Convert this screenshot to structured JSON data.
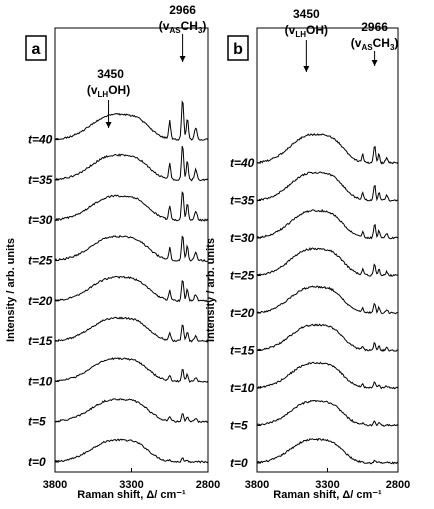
{
  "chart_data": [
    {
      "type": "line",
      "panel_label": "a",
      "xlabel": "Raman shift, Δ/ cm⁻¹",
      "ylabel": "Intensity / arb. units",
      "xlim": [
        3800,
        2800
      ],
      "x_ticks": [
        "3800",
        "3300",
        "2800"
      ],
      "series": [
        {
          "label": "t=0"
        },
        {
          "label": "t=5"
        },
        {
          "label": "t=10"
        },
        {
          "label": "t=15"
        },
        {
          "label": "t=20"
        },
        {
          "label": "t=25"
        },
        {
          "label": "t=30"
        },
        {
          "label": "t=35"
        },
        {
          "label": "t=40"
        }
      ],
      "annotations": [
        {
          "value": "3450",
          "mode": "(v",
          "sub": "LH",
          "species": "OH)",
          "x": 3450
        },
        {
          "value": "2966",
          "mode": "(v",
          "sub": "AS",
          "species": "CH",
          "sub2": "3",
          "close": ")",
          "x": 2966
        }
      ]
    },
    {
      "type": "line",
      "panel_label": "b",
      "xlabel": "Raman shift, Δ/ cm⁻¹",
      "ylabel": "Intensity / arb. units",
      "xlim": [
        3800,
        2800
      ],
      "x_ticks": [
        "3800",
        "3300",
        "2800"
      ],
      "series": [
        {
          "label": "t=0"
        },
        {
          "label": "t=5"
        },
        {
          "label": "t=10"
        },
        {
          "label": "t=15"
        },
        {
          "label": "t=20"
        },
        {
          "label": "t=25"
        },
        {
          "label": "t=30"
        },
        {
          "label": "t=35"
        },
        {
          "label": "t=40"
        }
      ],
      "annotations": [
        {
          "value": "3450",
          "mode": "(v",
          "sub": "LH",
          "species": "OH)",
          "x": 3450
        },
        {
          "value": "2966",
          "mode": "(v",
          "sub": "AS",
          "species": "CH",
          "sub2": "3",
          "close": ")",
          "x": 2966
        }
      ]
    }
  ]
}
